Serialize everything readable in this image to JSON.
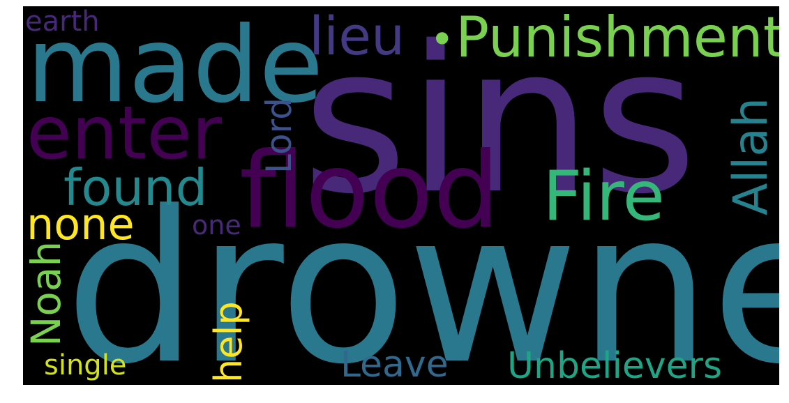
{
  "wordcloud": {
    "background": "#000000",
    "words": [
      {
        "key": "sins",
        "text": "sins",
        "color": "#482878"
      },
      {
        "key": "drowned",
        "text": "drowned",
        "color": "#2a788e"
      },
      {
        "key": "made",
        "text": "made",
        "color": "#2a788e"
      },
      {
        "key": "flood",
        "text": "flood",
        "color": "#440154"
      },
      {
        "key": "enter",
        "text": "enter",
        "color": "#440154"
      },
      {
        "key": "punishment",
        "text": "Punishment",
        "color": "#7ad151"
      },
      {
        "key": "fire",
        "text": "Fire",
        "color": "#35b779"
      },
      {
        "key": "found",
        "text": "found",
        "color": "#23898e"
      },
      {
        "key": "lieu",
        "text": "lieu",
        "color": "#443983"
      },
      {
        "key": "allah",
        "text": "Allah",
        "color": "#26828e"
      },
      {
        "key": "lord",
        "text": "Lord",
        "color": "#3b528b"
      },
      {
        "key": "none",
        "text": "none",
        "color": "#fde725"
      },
      {
        "key": "unbelievers",
        "text": "Unbelievers",
        "color": "#20a486"
      },
      {
        "key": "leave",
        "text": "Leave",
        "color": "#31688e"
      },
      {
        "key": "noah",
        "text": "Noah",
        "color": "#7ad151"
      },
      {
        "key": "help",
        "text": "help",
        "color": "#fde725"
      },
      {
        "key": "earth",
        "text": "earth",
        "color": "#482878"
      },
      {
        "key": "one",
        "text": "one",
        "color": "#482878"
      },
      {
        "key": "single",
        "text": "single",
        "color": "#d2e21b"
      },
      {
        "key": "dot",
        "text": "•",
        "color": "#7ad151"
      }
    ]
  }
}
